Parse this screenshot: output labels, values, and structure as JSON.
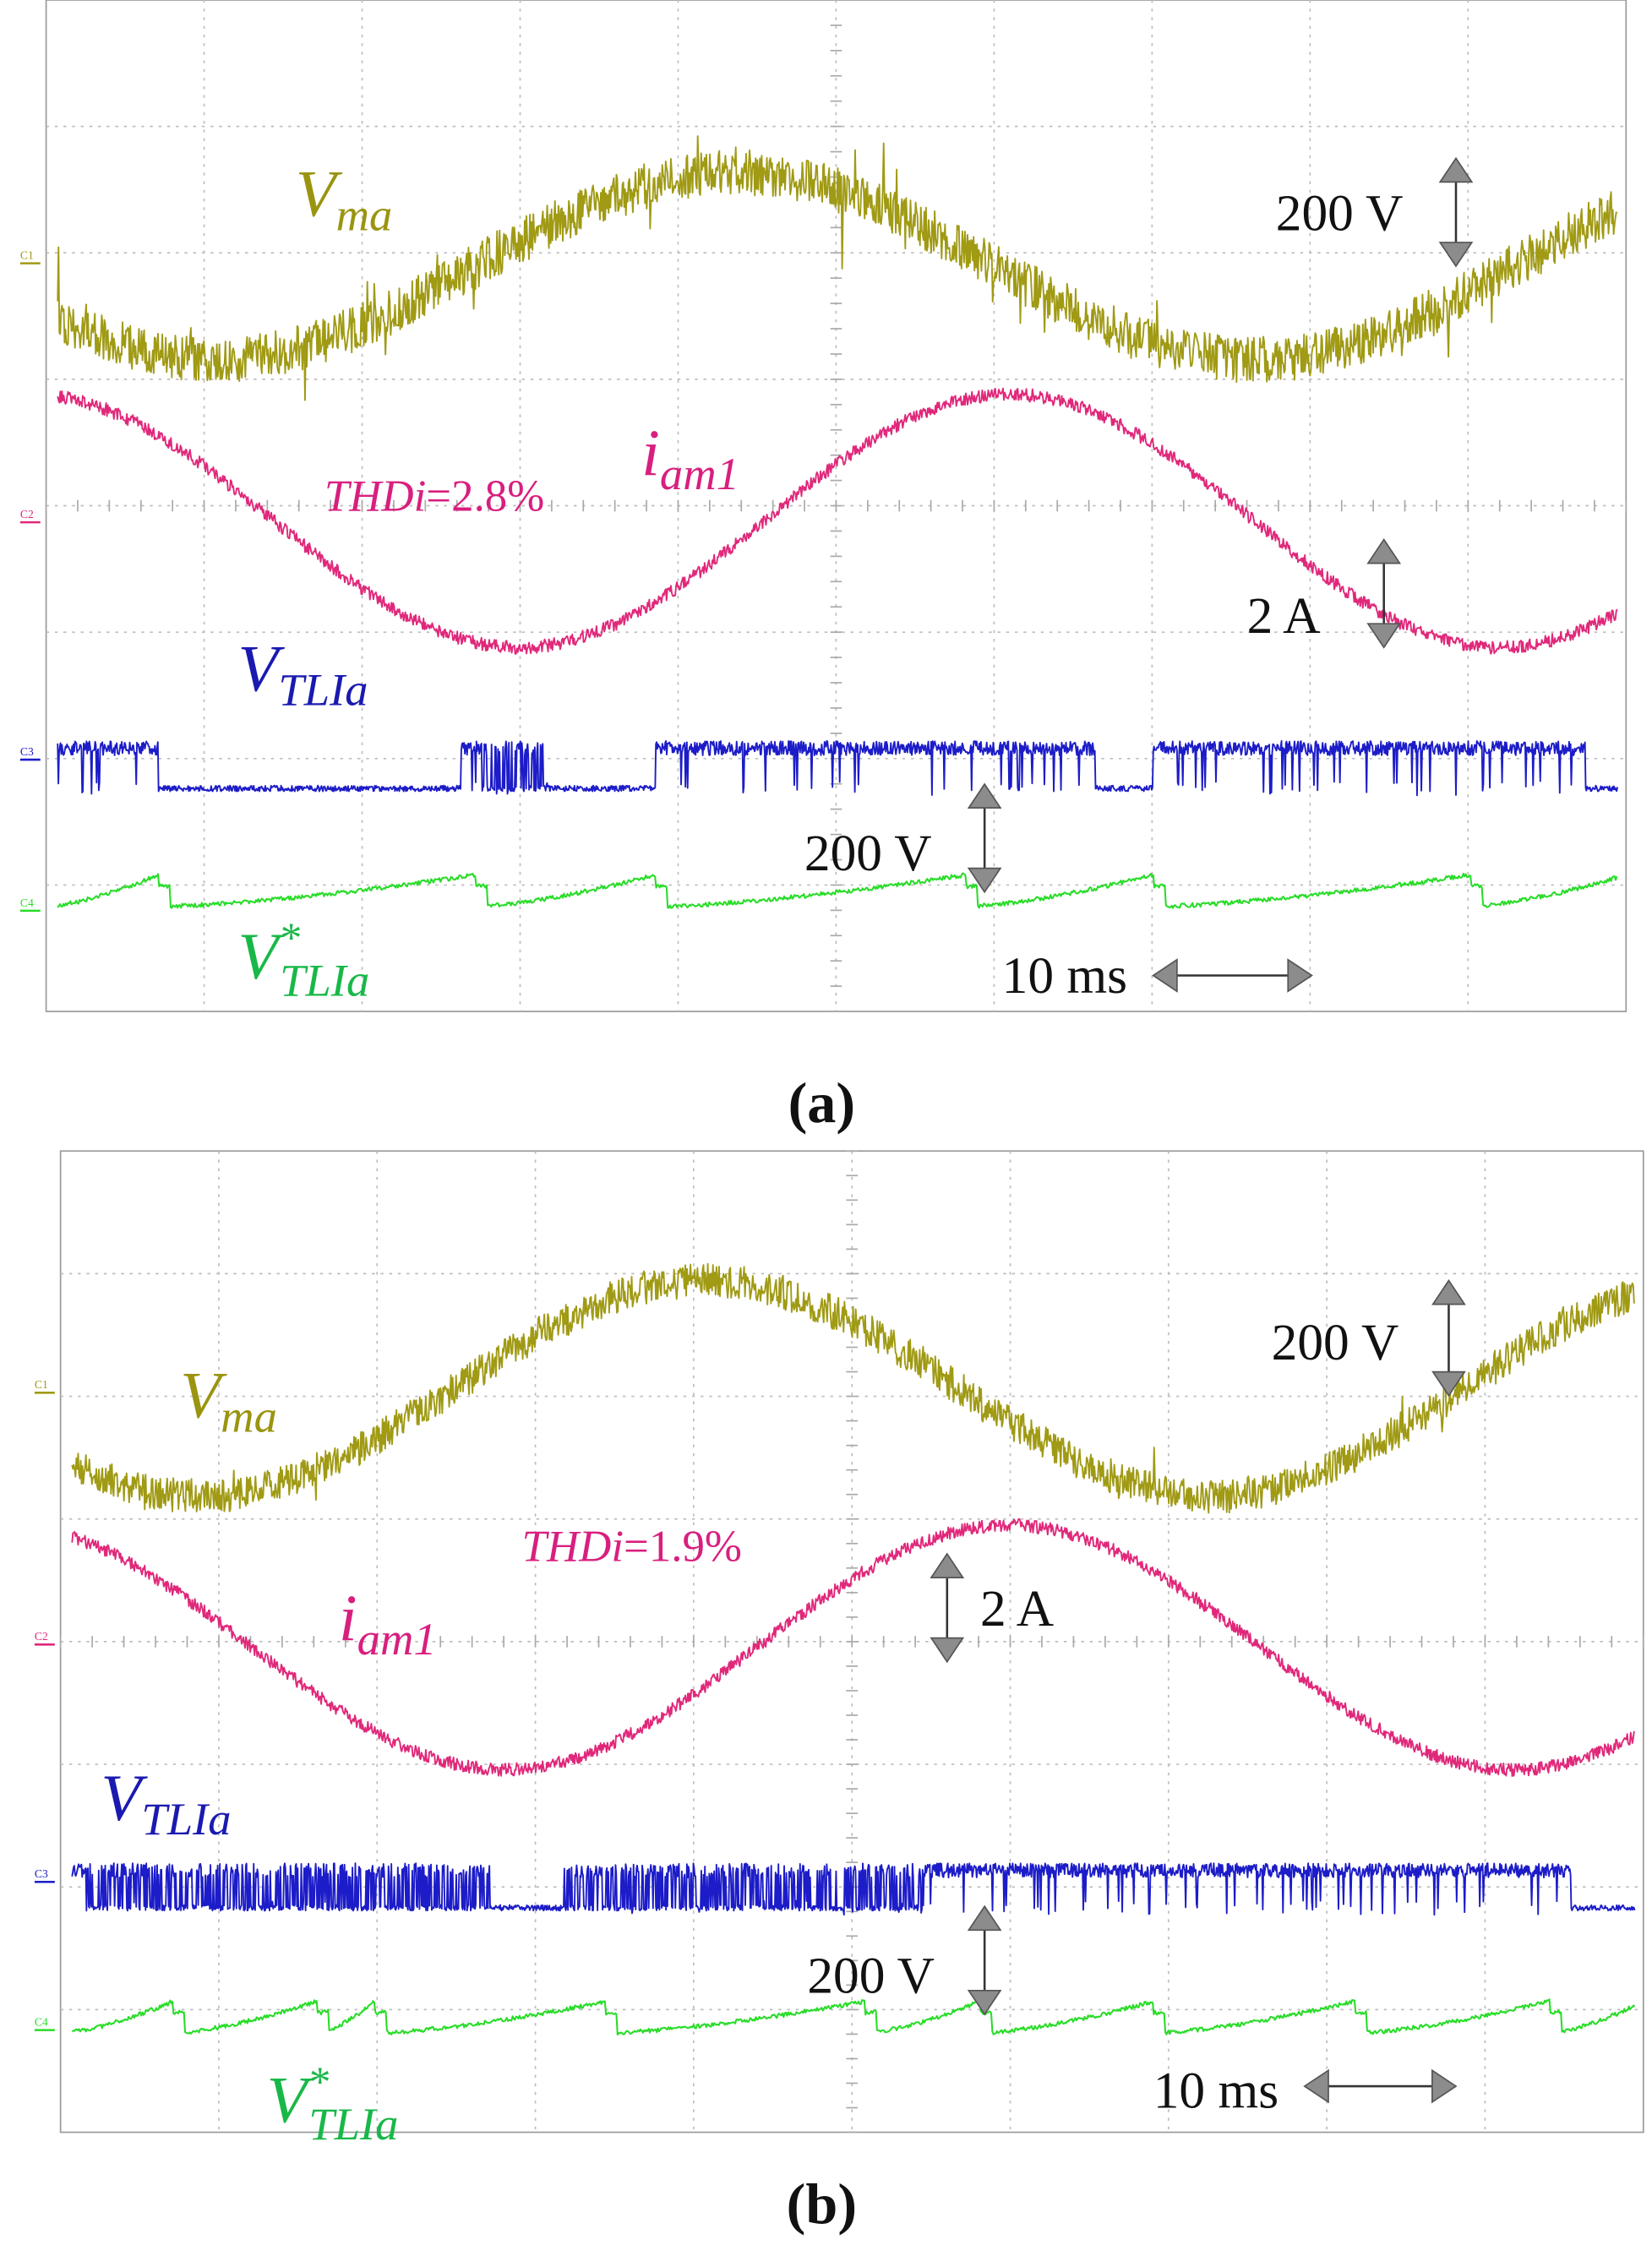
{
  "panels": [
    {
      "caption": "(a)",
      "channel_markers": [
        "C1",
        "C2",
        "C3",
        "C4"
      ],
      "labels": [
        {
          "symbol": "V",
          "subscript": "ma"
        },
        {
          "symbol": "i",
          "subscript": "am1"
        },
        {
          "symbol": "V",
          "subscript": "TLIa"
        },
        {
          "symbol": "V",
          "superscript": "*",
          "subscript": "TLIa"
        }
      ],
      "thdi": {
        "name": "THDi",
        "value": "=2.8%"
      },
      "scales": [
        "200 V",
        "2 A",
        "200 V",
        "10 ms"
      ]
    },
    {
      "caption": "(b)",
      "channel_markers": [
        "C1",
        "C2",
        "C3",
        "C4"
      ],
      "labels": [
        {
          "symbol": "V",
          "subscript": "ma"
        },
        {
          "symbol": "i",
          "subscript": "am1"
        },
        {
          "symbol": "V",
          "subscript": "TLIa"
        },
        {
          "symbol": "V",
          "superscript": "*",
          "subscript": "TLIa"
        }
      ],
      "thdi": {
        "name": "THDi",
        "value": "=1.9%"
      },
      "scales": [
        "200 V",
        "2 A",
        "200 V",
        "10 ms"
      ]
    }
  ]
}
